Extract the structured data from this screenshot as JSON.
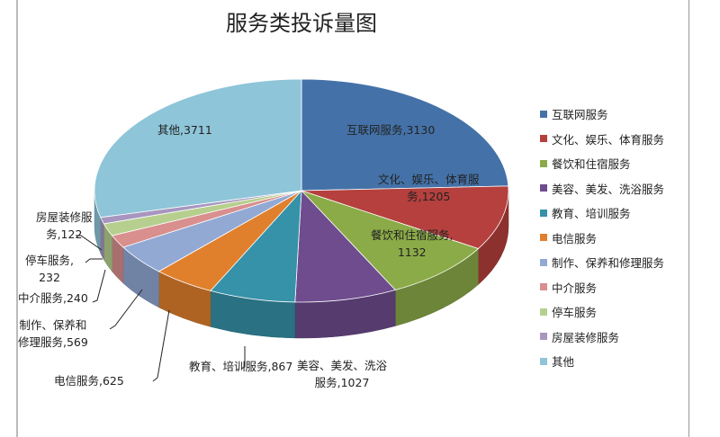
{
  "chart_data": {
    "type": "pie",
    "style": "3d",
    "title": "服务类投诉量图",
    "legend_position": "right",
    "slices": [
      {
        "name": "互联网服务",
        "value": 3130,
        "label": "互联网服务,3130",
        "color": "#4472a8"
      },
      {
        "name": "文化、娱乐、体育服务",
        "value": 1205,
        "label": "文化、娱乐、体育服\n务,1205",
        "color": "#b5403d"
      },
      {
        "name": "餐饮和住宿服务",
        "value": 1132,
        "label": "餐饮和住宿服务,\n1132",
        "color": "#8bab48"
      },
      {
        "name": "美容、美发、洗浴服务",
        "value": 1027,
        "label": "美容、美发、洗浴\n服务,1027",
        "color": "#6e4c8e"
      },
      {
        "name": "教育、培训服务",
        "value": 867,
        "label": "教育、培训服务,867",
        "color": "#3592a8"
      },
      {
        "name": "电信服务",
        "value": 625,
        "label": "电信服务,625",
        "color": "#e0802d"
      },
      {
        "name": "制作、保养和修理服务",
        "value": 569,
        "label": "制作、保养和\n修理服务,569",
        "color": "#92a9d4"
      },
      {
        "name": "中介服务",
        "value": 240,
        "label": "中介服务,240",
        "color": "#d88f8e"
      },
      {
        "name": "停车服务",
        "value": 232,
        "label": "停车服务,\n232",
        "color": "#b6cf8e"
      },
      {
        "name": "房屋装修服务",
        "value": 122,
        "label": "房屋装修服\n务,122",
        "color": "#a796c0"
      },
      {
        "name": "其他",
        "value": 3711,
        "label": "其他,3711",
        "color": "#8ec5d8"
      }
    ]
  }
}
